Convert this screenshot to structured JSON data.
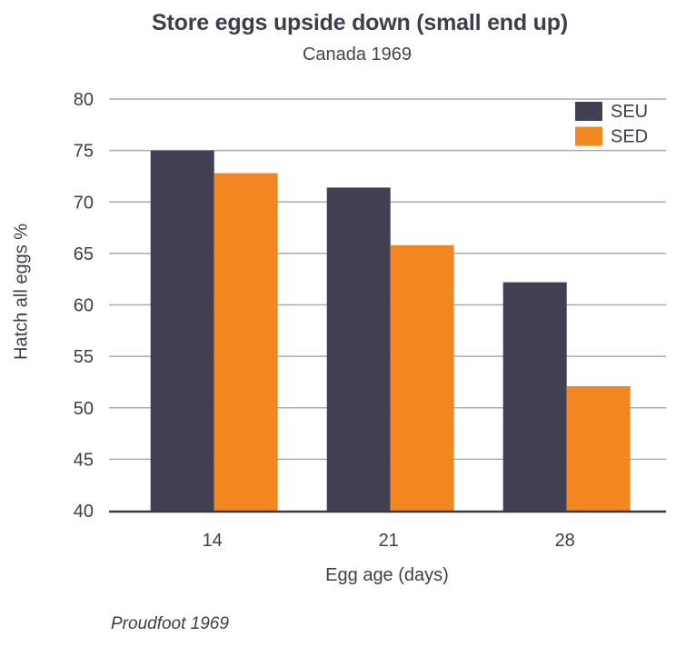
{
  "figure": {
    "title": "Store eggs upside down (small end up)",
    "subtitle": "Canada 1969",
    "footer": "Proudfoot 1969"
  },
  "chart_data": {
    "type": "bar",
    "title": "Store eggs upside down (small end up)",
    "subtitle": "Canada 1969",
    "categories": [
      "14",
      "21",
      "28"
    ],
    "series": [
      {
        "name": "SEU",
        "color": "#423f52",
        "values": [
          75.0,
          71.4,
          62.2
        ]
      },
      {
        "name": "SED",
        "color": "#f28722",
        "values": [
          72.8,
          65.8,
          52.1
        ]
      }
    ],
    "xlabel": "Egg age (days)",
    "ylabel": "Hatch all eggs %",
    "ylim": [
      40,
      80
    ],
    "ytick_step": 5,
    "yticks": [
      40,
      45,
      50,
      55,
      60,
      65,
      70,
      75,
      80
    ],
    "grid": "horizontal",
    "legend_position": "top-right",
    "annotation": "Proudfoot 1969"
  },
  "colors": {
    "text": "#3e3c4e",
    "gridline": "#aaaab2",
    "axis_line": "#3a3947",
    "background": "#ffffff",
    "seu": "#423f52",
    "sed": "#f28722"
  }
}
